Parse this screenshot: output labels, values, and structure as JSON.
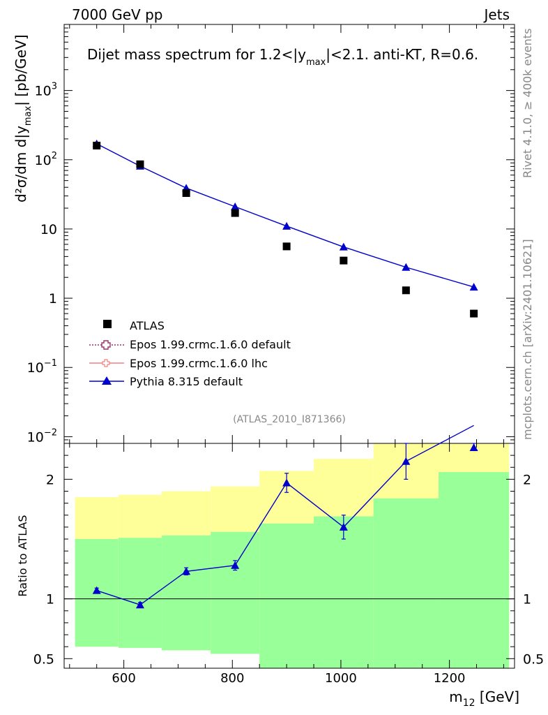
{
  "header": {
    "left": "7000 GeV pp",
    "right": "Jets"
  },
  "side_labels": {
    "top": "Rivet 4.1.0, ≥ 400k events",
    "bottom": "mcplots.cern.ch [arXiv:2401.10621]"
  },
  "chart_data": [
    {
      "type": "scatter",
      "panel": "main",
      "title": "Dijet mass spectrum for 1.2<|y",
      "title_sub": "max",
      "title_end": "|<2.1.  anti-KT, R=0.6.",
      "ylabel": "d²σ/dm d|y",
      "ylabel_sub": "max",
      "ylabel_end": "| [pb/GeV]",
      "yscale": "log",
      "ylim": [
        0.008,
        9000
      ],
      "xlim": [
        490,
        1320
      ],
      "yticks": [
        {
          "v": 0.01,
          "base": "10",
          "exp": "−2"
        },
        {
          "v": 0.1,
          "base": "10",
          "exp": "−1"
        },
        {
          "v": 1,
          "base": "1",
          "exp": ""
        },
        {
          "v": 10,
          "base": "10",
          "exp": ""
        },
        {
          "v": 100,
          "base": "10",
          "exp": "2"
        },
        {
          "v": 1000,
          "base": "10",
          "exp": "3"
        }
      ],
      "analysis_tag": "(ATLAS_2010_I871366)",
      "legend": [
        {
          "label": "ATLAS",
          "marker": "square"
        },
        {
          "label": "Epos 1.99.crmc.1.6.0 default",
          "marker": "open-cross-dotted"
        },
        {
          "label": "Epos 1.99.crmc.1.6.0 lhc",
          "marker": "open-cross-line"
        },
        {
          "label": "Pythia 8.315 default",
          "marker": "triangle"
        }
      ],
      "series": [
        {
          "name": "ATLAS",
          "color": "#000000",
          "x": [
            550,
            630,
            715,
            805,
            900,
            1005,
            1120,
            1245
          ],
          "y": [
            160,
            86,
            33,
            17,
            5.6,
            3.5,
            1.3,
            0.6
          ]
        },
        {
          "name": "Pythia 8.315 default",
          "color": "#0000cc",
          "x": [
            550,
            630,
            715,
            805,
            900,
            1005,
            1120,
            1245
          ],
          "y": [
            170,
            81,
            39,
            21,
            11,
            5.5,
            2.8,
            1.45
          ]
        }
      ]
    },
    {
      "type": "line",
      "panel": "ratio",
      "ylabel": "Ratio to ATLAS",
      "xlabel": "m",
      "xlabel_sub": "12",
      "xlabel_end": " [GeV]",
      "ylim": [
        0.42,
        2.3
      ],
      "xlim": [
        490,
        1320
      ],
      "xticks": [
        600,
        800,
        1000,
        1200
      ],
      "yticks": [
        0.5,
        1,
        2
      ],
      "bands": [
        {
          "x0": 510,
          "x1": 590,
          "yellow": [
            0.6,
            1.85
          ],
          "green": [
            0.6,
            1.5
          ]
        },
        {
          "x0": 590,
          "x1": 670,
          "yellow": [
            0.59,
            1.87
          ],
          "green": [
            0.59,
            1.51
          ]
        },
        {
          "x0": 670,
          "x1": 760,
          "yellow": [
            0.57,
            1.9
          ],
          "green": [
            0.57,
            1.53
          ]
        },
        {
          "x0": 760,
          "x1": 850,
          "yellow": [
            0.54,
            1.94
          ],
          "green": [
            0.54,
            1.56
          ]
        },
        {
          "x0": 850,
          "x1": 950,
          "yellow": [
            0.4,
            2.07
          ],
          "green": [
            0.4,
            1.63
          ]
        },
        {
          "x0": 950,
          "x1": 1060,
          "yellow": [
            0.3,
            2.17
          ],
          "green": [
            0.3,
            1.69
          ]
        },
        {
          "x0": 1060,
          "x1": 1180,
          "yellow": [
            0.3,
            2.3
          ],
          "green": [
            0.3,
            1.84
          ]
        },
        {
          "x0": 1180,
          "x1": 1310,
          "yellow": [
            0.3,
            2.3
          ],
          "green": [
            0.3,
            2.06
          ]
        }
      ],
      "series": [
        {
          "name": "Pythia 8.315 default",
          "color": "#0000cc",
          "x": [
            550,
            630,
            715,
            805,
            900,
            1005,
            1120,
            1245
          ],
          "y": [
            1.07,
            0.95,
            1.23,
            1.28,
            1.97,
            1.6,
            2.15,
            2.45
          ],
          "err": [
            0.02,
            0.02,
            0.03,
            0.04,
            0.08,
            0.1,
            0.15,
            0.2
          ]
        }
      ]
    }
  ]
}
